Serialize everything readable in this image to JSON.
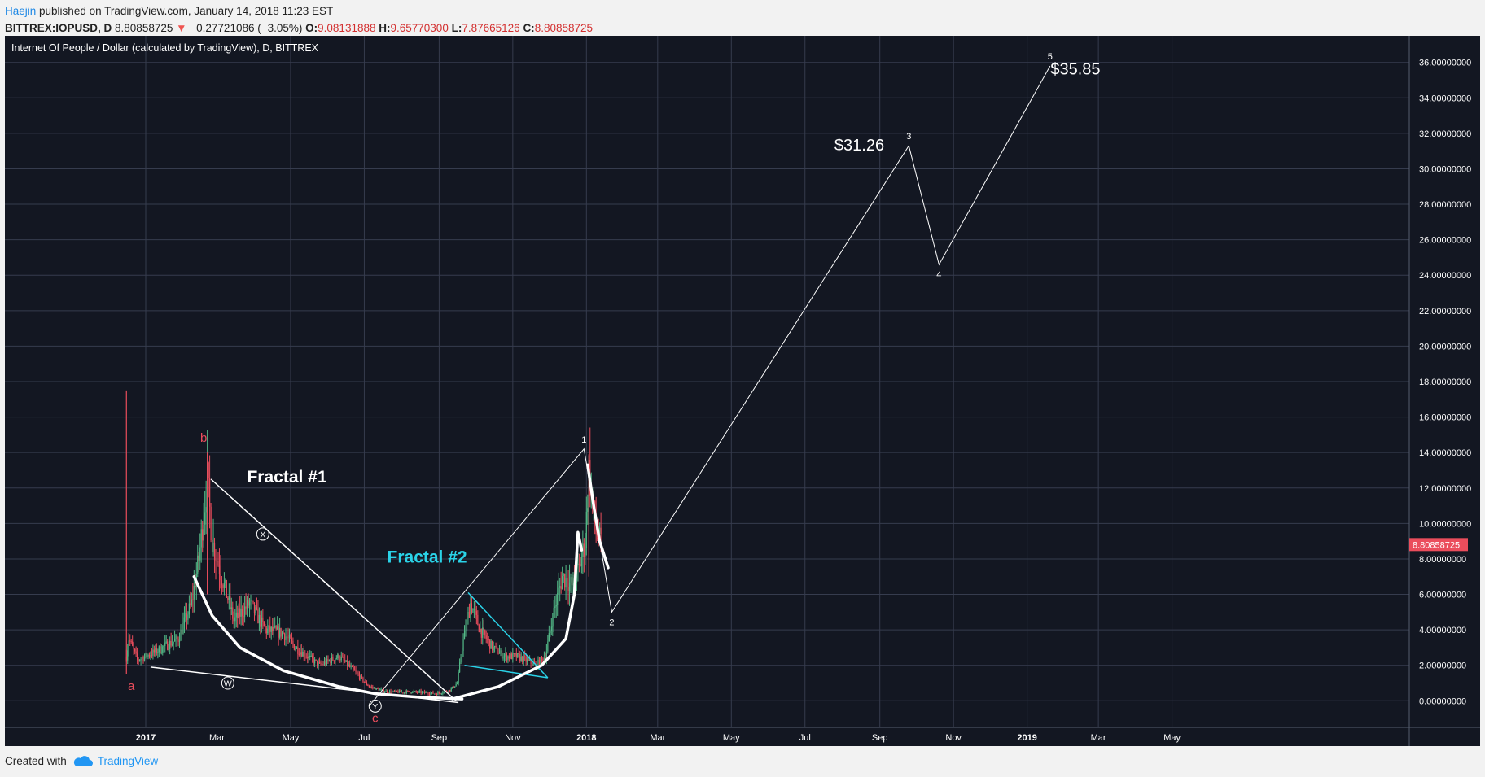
{
  "header": {
    "author": "Haejin",
    "published_text": " published on TradingView.com, January 14, 2018 11:23 EST",
    "symbol": "BITTREX:IOPUSD, D",
    "last": "8.80858725",
    "change_arrow": "▼",
    "change": "−0.27721086 (−3.05%)",
    "open_label": "O:",
    "open": "9.08131888",
    "high_label": "H:",
    "high": "9.65770300",
    "low_label": "L:",
    "low": "7.87665126",
    "close_label": "C:",
    "close": "8.80858725"
  },
  "footer": {
    "created_with": "Created with",
    "brand": "TradingView"
  },
  "chart_data": {
    "type": "candlestick",
    "title": "Internet Of People / Dollar (calculated by TradingView), D, BITTREX",
    "colors": {
      "background": "#131722",
      "grid": "#363c4e",
      "up": "#53b987",
      "down": "#eb4d5c",
      "axis_text": "#ffffff",
      "fractal2": "#2ad3e8",
      "price_label": "#eb4d5c"
    },
    "y_axis": {
      "min": -1.5,
      "max": 37.5,
      "ticks": [
        "0.00000000",
        "2.00000000",
        "4.00000000",
        "6.00000000",
        "8.00000000",
        "10.00000000",
        "12.00000000",
        "14.00000000",
        "16.00000000",
        "18.00000000",
        "20.00000000",
        "22.00000000",
        "24.00000000",
        "26.00000000",
        "28.00000000",
        "30.00000000",
        "32.00000000",
        "34.00000000",
        "36.00000000"
      ],
      "last_price_label": "8.80858725",
      "last_price": 8.80858725
    },
    "x_axis": {
      "ticks": [
        {
          "label": "2017",
          "date": "2017-01-01",
          "bold": true
        },
        {
          "label": "Mar",
          "date": "2017-03-01"
        },
        {
          "label": "May",
          "date": "2017-05-01"
        },
        {
          "label": "Jul",
          "date": "2017-07-01"
        },
        {
          "label": "Sep",
          "date": "2017-09-01"
        },
        {
          "label": "Nov",
          "date": "2017-11-01"
        },
        {
          "label": "2018",
          "date": "2018-01-01",
          "bold": true
        },
        {
          "label": "Mar",
          "date": "2018-03-01"
        },
        {
          "label": "May",
          "date": "2018-05-01"
        },
        {
          "label": "Jul",
          "date": "2018-07-01"
        },
        {
          "label": "Sep",
          "date": "2018-09-01"
        },
        {
          "label": "Nov",
          "date": "2018-11-01"
        },
        {
          "label": "2019",
          "date": "2019-01-01",
          "bold": true
        },
        {
          "label": "Mar",
          "date": "2019-03-01"
        },
        {
          "label": "May",
          "date": "2019-05-01"
        }
      ]
    },
    "price_path": [
      {
        "date": "2016-12-16",
        "price": 2.5
      },
      {
        "date": "2016-12-18",
        "price": 3.5
      },
      {
        "date": "2016-12-25",
        "price": 2.3
      },
      {
        "date": "2017-01-10",
        "price": 2.8
      },
      {
        "date": "2017-01-28",
        "price": 3.5
      },
      {
        "date": "2017-02-08",
        "price": 5.5
      },
      {
        "date": "2017-02-14",
        "price": 8.0
      },
      {
        "date": "2017-02-18",
        "price": 10.5
      },
      {
        "date": "2017-02-21",
        "price": 12.5
      },
      {
        "date": "2017-02-25",
        "price": 9.0
      },
      {
        "date": "2017-03-05",
        "price": 7.0
      },
      {
        "date": "2017-03-15",
        "price": 4.5
      },
      {
        "date": "2017-03-28",
        "price": 5.5
      },
      {
        "date": "2017-04-10",
        "price": 4.0
      },
      {
        "date": "2017-04-25",
        "price": 3.8
      },
      {
        "date": "2017-05-05",
        "price": 3.0
      },
      {
        "date": "2017-05-25",
        "price": 2.0
      },
      {
        "date": "2017-06-10",
        "price": 2.5
      },
      {
        "date": "2017-06-25",
        "price": 1.5
      },
      {
        "date": "2017-07-05",
        "price": 0.8
      },
      {
        "date": "2017-07-20",
        "price": 0.5
      },
      {
        "date": "2017-08-10",
        "price": 0.5
      },
      {
        "date": "2017-08-30",
        "price": 0.4
      },
      {
        "date": "2017-09-10",
        "price": 0.6
      },
      {
        "date": "2017-09-16",
        "price": 1.0
      },
      {
        "date": "2017-09-20",
        "price": 3.0
      },
      {
        "date": "2017-09-27",
        "price": 5.5
      },
      {
        "date": "2017-10-05",
        "price": 4.0
      },
      {
        "date": "2017-10-15",
        "price": 3.0
      },
      {
        "date": "2017-10-25",
        "price": 2.5
      },
      {
        "date": "2017-11-05",
        "price": 2.5
      },
      {
        "date": "2017-11-20",
        "price": 2.0
      },
      {
        "date": "2017-11-28",
        "price": 2.5
      },
      {
        "date": "2017-12-05",
        "price": 5.0
      },
      {
        "date": "2017-12-12",
        "price": 7.0
      },
      {
        "date": "2017-12-20",
        "price": 6.5
      },
      {
        "date": "2017-12-26",
        "price": 7.5
      },
      {
        "date": "2017-12-31",
        "price": 9.0
      },
      {
        "date": "2018-01-03",
        "price": 13.0
      },
      {
        "date": "2018-01-06",
        "price": 11.0
      },
      {
        "date": "2018-01-09",
        "price": 9.5
      },
      {
        "date": "2018-01-13",
        "price": 8.8
      }
    ],
    "spikes": [
      {
        "date": "2016-12-16",
        "high": 17.5,
        "low": 1.5
      },
      {
        "date": "2017-02-21",
        "high": 14.0,
        "low": 6.0
      },
      {
        "date": "2018-01-03",
        "high": 13.9,
        "low": 7.0
      }
    ],
    "elliott_projection": {
      "points": [
        {
          "label": "1",
          "date": "2017-12-30",
          "price": 14.2
        },
        {
          "label": "2",
          "date": "2018-01-22",
          "price": 5.0
        },
        {
          "label": "3",
          "date": "2018-09-25",
          "price": 31.3
        },
        {
          "label": "4",
          "date": "2018-10-20",
          "price": 24.6
        },
        {
          "label": "5",
          "date": "2019-01-20",
          "price": 35.8
        }
      ],
      "start": {
        "date": "2017-07-05",
        "price": -0.3
      }
    },
    "price_targets": [
      {
        "text": "$31.26",
        "date": "2018-08-15",
        "price": 31.3
      },
      {
        "text": "$35.85",
        "date": "2019-02-10",
        "price": 35.6
      }
    ],
    "wave_labels_red": [
      {
        "text": "a",
        "date": "2016-12-20",
        "price": 0.6
      },
      {
        "text": "b",
        "date": "2017-02-18",
        "price": 14.6
      },
      {
        "text": "c",
        "date": "2017-07-10",
        "price": -1.2
      }
    ],
    "wave_labels_circled": [
      {
        "text": "X",
        "date": "2017-04-08",
        "price": 9.4
      },
      {
        "text": "W",
        "date": "2017-03-10",
        "price": 1.0
      },
      {
        "text": "Y",
        "date": "2017-07-10",
        "price": -0.3
      }
    ],
    "fractal_labels": [
      {
        "text": "Fractal #1",
        "date": "2017-04-28",
        "price": 12.3,
        "color": "#ffffff"
      },
      {
        "text": "Fractal #2",
        "date": "2017-08-22",
        "price": 7.8,
        "color": "#2ad3e8"
      }
    ],
    "trendlines": {
      "fractal1_upper": [
        {
          "date": "2017-02-24",
          "price": 12.5
        },
        {
          "date": "2017-09-15",
          "price": 0.0
        }
      ],
      "fractal1_lower": [
        {
          "date": "2017-01-05",
          "price": 1.9
        },
        {
          "date": "2017-09-17",
          "price": -0.1
        }
      ],
      "fractal2_upper": [
        {
          "date": "2017-09-25",
          "price": 6.1
        },
        {
          "date": "2017-11-30",
          "price": 1.3
        }
      ],
      "fractal2_lower": [
        {
          "date": "2017-09-22",
          "price": 2.0
        },
        {
          "date": "2017-11-30",
          "price": 1.3
        }
      ]
    },
    "fractal1_arc": [
      {
        "date": "2017-02-10",
        "price": 7.0
      },
      {
        "date": "2017-02-25",
        "price": 4.8
      },
      {
        "date": "2017-03-20",
        "price": 3.0
      },
      {
        "date": "2017-04-25",
        "price": 1.7
      },
      {
        "date": "2017-06-10",
        "price": 0.8
      },
      {
        "date": "2017-07-10",
        "price": 0.4
      },
      {
        "date": "2017-08-15",
        "price": 0.2
      },
      {
        "date": "2017-09-20",
        "price": 0.1
      }
    ],
    "fractal2_arc": [
      {
        "date": "2017-09-12",
        "price": 0.1
      },
      {
        "date": "2017-10-20",
        "price": 0.8
      },
      {
        "date": "2017-11-25",
        "price": 2.0
      },
      {
        "date": "2017-12-15",
        "price": 3.5
      },
      {
        "date": "2017-12-22",
        "price": 6.0
      },
      {
        "date": "2017-12-25",
        "price": 9.5
      },
      {
        "date": "2017-12-28",
        "price": 8.5
      }
    ],
    "fractal2_arc_b": [
      {
        "date": "2018-01-02",
        "price": 13.3
      },
      {
        "date": "2018-01-07",
        "price": 11.0
      },
      {
        "date": "2018-01-12",
        "price": 9.0
      },
      {
        "date": "2018-01-19",
        "price": 7.5
      }
    ]
  }
}
